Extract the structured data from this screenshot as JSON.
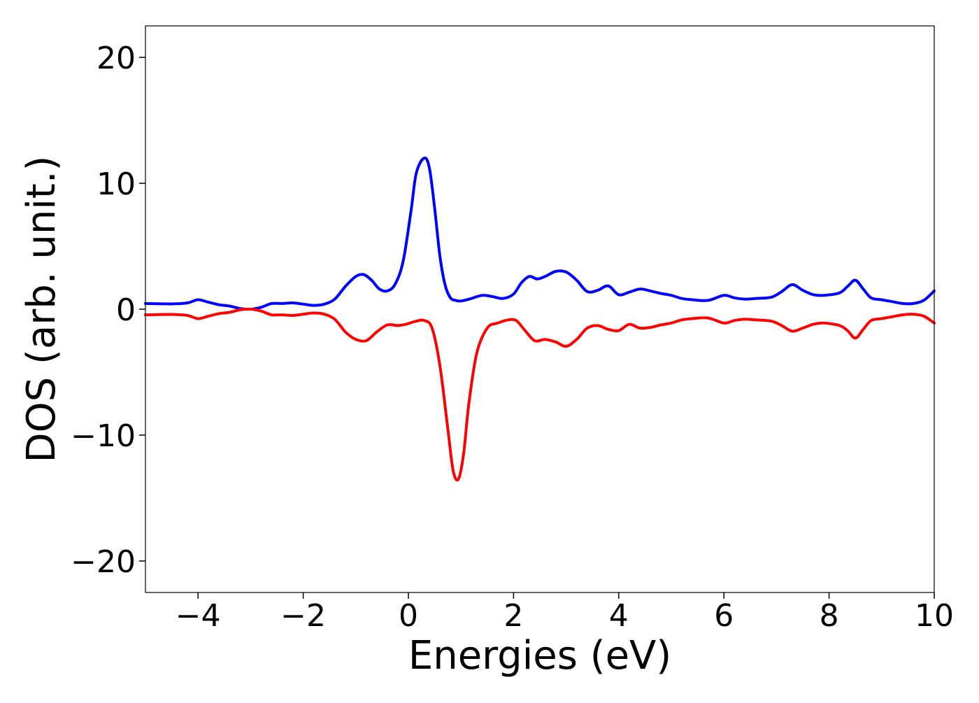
{
  "chart_data": {
    "type": "line",
    "title": "",
    "xlabel": "Energies (eV)",
    "ylabel": "DOS (arb. unit.)",
    "xlim": [
      -5,
      10
    ],
    "ylim": [
      -22.5,
      22.5
    ],
    "x_ticks": [
      -4,
      -2,
      0,
      2,
      4,
      6,
      8,
      10
    ],
    "x_tick_labels": [
      "−4",
      "−2",
      "0",
      "2",
      "4",
      "6",
      "8",
      "10"
    ],
    "y_ticks": [
      -20,
      -10,
      0,
      10,
      20
    ],
    "y_tick_labels": [
      "−20",
      "−10",
      "0",
      "10",
      "20"
    ],
    "grid": false,
    "legend": "none",
    "series": [
      {
        "color": "#0000ff",
        "points": [
          [
            -5.0,
            0.45
          ],
          [
            -4.5,
            0.42
          ],
          [
            -4.2,
            0.5
          ],
          [
            -4.0,
            0.75
          ],
          [
            -3.8,
            0.55
          ],
          [
            -3.6,
            0.35
          ],
          [
            -3.4,
            0.25
          ],
          [
            -3.2,
            0.05
          ],
          [
            -3.0,
            0.0
          ],
          [
            -2.8,
            0.15
          ],
          [
            -2.6,
            0.45
          ],
          [
            -2.4,
            0.45
          ],
          [
            -2.2,
            0.5
          ],
          [
            -2.0,
            0.4
          ],
          [
            -1.8,
            0.3
          ],
          [
            -1.6,
            0.4
          ],
          [
            -1.4,
            0.8
          ],
          [
            -1.2,
            1.8
          ],
          [
            -1.0,
            2.6
          ],
          [
            -0.85,
            2.75
          ],
          [
            -0.7,
            2.3
          ],
          [
            -0.55,
            1.6
          ],
          [
            -0.4,
            1.45
          ],
          [
            -0.25,
            2.0
          ],
          [
            -0.1,
            3.8
          ],
          [
            0.05,
            7.8
          ],
          [
            0.15,
            10.8
          ],
          [
            0.3,
            12.0
          ],
          [
            0.4,
            11.2
          ],
          [
            0.5,
            8.0
          ],
          [
            0.6,
            4.2
          ],
          [
            0.7,
            1.9
          ],
          [
            0.8,
            0.9
          ],
          [
            0.9,
            0.7
          ],
          [
            1.0,
            0.65
          ],
          [
            1.2,
            0.85
          ],
          [
            1.4,
            1.1
          ],
          [
            1.6,
            1.0
          ],
          [
            1.8,
            0.85
          ],
          [
            2.0,
            1.2
          ],
          [
            2.15,
            2.1
          ],
          [
            2.3,
            2.6
          ],
          [
            2.45,
            2.4
          ],
          [
            2.6,
            2.6
          ],
          [
            2.8,
            3.0
          ],
          [
            3.0,
            2.95
          ],
          [
            3.2,
            2.3
          ],
          [
            3.4,
            1.4
          ],
          [
            3.6,
            1.5
          ],
          [
            3.8,
            1.85
          ],
          [
            4.0,
            1.15
          ],
          [
            4.2,
            1.35
          ],
          [
            4.4,
            1.6
          ],
          [
            4.6,
            1.45
          ],
          [
            4.8,
            1.25
          ],
          [
            5.0,
            1.1
          ],
          [
            5.2,
            0.85
          ],
          [
            5.4,
            0.75
          ],
          [
            5.7,
            0.7
          ],
          [
            6.0,
            1.1
          ],
          [
            6.2,
            0.9
          ],
          [
            6.4,
            0.8
          ],
          [
            6.6,
            0.85
          ],
          [
            6.9,
            0.95
          ],
          [
            7.1,
            1.4
          ],
          [
            7.3,
            1.95
          ],
          [
            7.5,
            1.5
          ],
          [
            7.7,
            1.15
          ],
          [
            7.9,
            1.1
          ],
          [
            8.2,
            1.3
          ],
          [
            8.35,
            1.8
          ],
          [
            8.5,
            2.3
          ],
          [
            8.65,
            1.6
          ],
          [
            8.8,
            0.9
          ],
          [
            9.0,
            0.75
          ],
          [
            9.2,
            0.6
          ],
          [
            9.4,
            0.45
          ],
          [
            9.6,
            0.45
          ],
          [
            9.8,
            0.7
          ],
          [
            10.0,
            1.45
          ]
        ]
      },
      {
        "color": "#ff0000",
        "points": [
          [
            -5.0,
            -0.45
          ],
          [
            -4.5,
            -0.42
          ],
          [
            -4.2,
            -0.5
          ],
          [
            -4.0,
            -0.75
          ],
          [
            -3.8,
            -0.55
          ],
          [
            -3.6,
            -0.35
          ],
          [
            -3.4,
            -0.25
          ],
          [
            -3.2,
            -0.05
          ],
          [
            -3.0,
            0.0
          ],
          [
            -2.8,
            -0.15
          ],
          [
            -2.6,
            -0.45
          ],
          [
            -2.4,
            -0.45
          ],
          [
            -2.2,
            -0.5
          ],
          [
            -2.0,
            -0.4
          ],
          [
            -1.8,
            -0.3
          ],
          [
            -1.6,
            -0.4
          ],
          [
            -1.4,
            -0.8
          ],
          [
            -1.2,
            -1.8
          ],
          [
            -1.0,
            -2.4
          ],
          [
            -0.8,
            -2.5
          ],
          [
            -0.6,
            -1.8
          ],
          [
            -0.4,
            -1.25
          ],
          [
            -0.2,
            -1.3
          ],
          [
            -0.05,
            -1.2
          ],
          [
            0.15,
            -0.95
          ],
          [
            0.3,
            -0.9
          ],
          [
            0.45,
            -1.5
          ],
          [
            0.6,
            -4.5
          ],
          [
            0.75,
            -9.5
          ],
          [
            0.85,
            -12.8
          ],
          [
            0.95,
            -13.5
          ],
          [
            1.05,
            -11.5
          ],
          [
            1.15,
            -7.5
          ],
          [
            1.3,
            -3.5
          ],
          [
            1.5,
            -1.5
          ],
          [
            1.7,
            -1.1
          ],
          [
            1.9,
            -0.85
          ],
          [
            2.05,
            -0.9
          ],
          [
            2.2,
            -1.6
          ],
          [
            2.4,
            -2.5
          ],
          [
            2.6,
            -2.4
          ],
          [
            2.8,
            -2.6
          ],
          [
            3.0,
            -2.95
          ],
          [
            3.2,
            -2.4
          ],
          [
            3.4,
            -1.5
          ],
          [
            3.6,
            -1.3
          ],
          [
            3.8,
            -1.6
          ],
          [
            4.0,
            -1.7
          ],
          [
            4.2,
            -1.2
          ],
          [
            4.4,
            -1.5
          ],
          [
            4.6,
            -1.45
          ],
          [
            4.8,
            -1.25
          ],
          [
            5.0,
            -1.1
          ],
          [
            5.2,
            -0.85
          ],
          [
            5.4,
            -0.75
          ],
          [
            5.7,
            -0.7
          ],
          [
            6.0,
            -1.1
          ],
          [
            6.2,
            -0.9
          ],
          [
            6.4,
            -0.8
          ],
          [
            6.6,
            -0.85
          ],
          [
            6.9,
            -0.95
          ],
          [
            7.1,
            -1.3
          ],
          [
            7.3,
            -1.75
          ],
          [
            7.5,
            -1.5
          ],
          [
            7.7,
            -1.2
          ],
          [
            7.9,
            -1.1
          ],
          [
            8.2,
            -1.3
          ],
          [
            8.35,
            -1.7
          ],
          [
            8.5,
            -2.3
          ],
          [
            8.65,
            -1.6
          ],
          [
            8.8,
            -0.9
          ],
          [
            9.0,
            -0.75
          ],
          [
            9.2,
            -0.6
          ],
          [
            9.4,
            -0.45
          ],
          [
            9.6,
            -0.4
          ],
          [
            9.8,
            -0.55
          ],
          [
            10.0,
            -1.1
          ]
        ]
      }
    ]
  }
}
